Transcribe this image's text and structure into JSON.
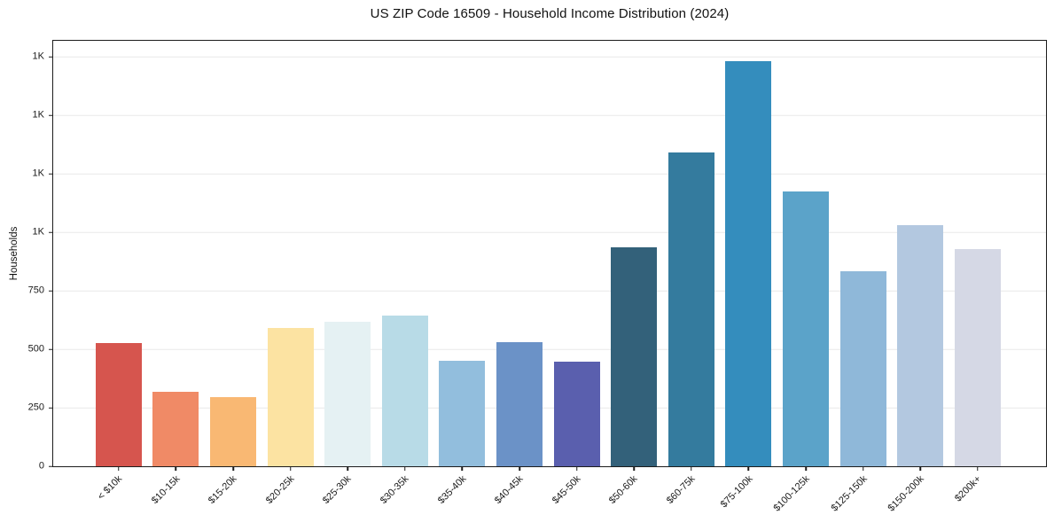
{
  "title": "US ZIP Code 16509 - Household Income Distribution (2024)",
  "chart_data": {
    "type": "bar",
    "title": "US ZIP Code 16509 - Household Income Distribution (2024)",
    "xlabel": "",
    "ylabel": "Households",
    "categories": [
      "< $10k",
      "$10-15k",
      "$15-20k",
      "$20-25k",
      "$25-30k",
      "$30-35k",
      "$35-40k",
      "$40-45k",
      "$45-50k",
      "$50-60k",
      "$60-75k",
      "$75-100k",
      "$100-125k",
      "$125-150k",
      "$150-200k",
      "$200k+"
    ],
    "values": [
      525,
      318,
      296,
      590,
      617,
      643,
      450,
      529,
      446,
      935,
      1341,
      1731,
      1174,
      834,
      1031,
      929
    ],
    "bar_colors": [
      "#d6554e",
      "#f08a66",
      "#f9b873",
      "#fce3a2",
      "#e5f1f3",
      "#b8dbe7",
      "#92bedd",
      "#6b92c7",
      "#5a5fae",
      "#33617a",
      "#347b9e",
      "#348dbd",
      "#5ba3c9",
      "#8fb8d9",
      "#b3c8e0",
      "#d5d8e5"
    ],
    "ylim": [
      0,
      1815
    ],
    "yticks": [
      {
        "value": 0,
        "label": "0"
      },
      {
        "value": 250,
        "label": "250"
      },
      {
        "value": 500,
        "label": "500"
      },
      {
        "value": 750,
        "label": "750"
      },
      {
        "value": 1000,
        "label": "1K"
      },
      {
        "value": 1250,
        "label": "1K"
      },
      {
        "value": 1500,
        "label": "1K"
      },
      {
        "value": 1750,
        "label": "1K"
      }
    ],
    "grid": "horizontal",
    "grid_color": "#e8e8e8",
    "axis_color": "#1c1c1c",
    "background": "#ffffff",
    "legend": "none"
  }
}
